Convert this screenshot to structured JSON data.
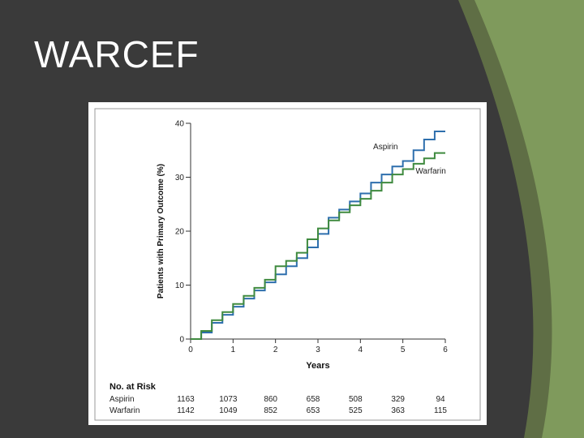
{
  "slide": {
    "title": "WARCEF",
    "colors": {
      "background": "#3a3a3a",
      "accent_dark": "#5f6e45",
      "accent_light": "#7f9a5c"
    }
  },
  "chart_data": {
    "type": "line",
    "title": "",
    "xlabel": "Years",
    "ylabel": "Patients with Primary Outcome (%)",
    "xlim": [
      0,
      6
    ],
    "ylim": [
      0,
      40
    ],
    "x_ticks": [
      "0",
      "1",
      "2",
      "3",
      "4",
      "5",
      "6"
    ],
    "y_ticks": [
      "0",
      "10",
      "20",
      "30",
      "40"
    ],
    "grid": false,
    "series": [
      {
        "name": "Aspirin",
        "color": "#2e6fad",
        "points": [
          [
            0,
            0
          ],
          [
            0.25,
            1.2
          ],
          [
            0.5,
            3
          ],
          [
            0.75,
            4.5
          ],
          [
            1,
            6
          ],
          [
            1.25,
            7.5
          ],
          [
            1.5,
            9
          ],
          [
            1.75,
            10.5
          ],
          [
            2,
            12
          ],
          [
            2.25,
            13.5
          ],
          [
            2.5,
            15
          ],
          [
            2.75,
            17
          ],
          [
            3,
            19.5
          ],
          [
            3.25,
            22.5
          ],
          [
            3.5,
            24
          ],
          [
            3.75,
            25.5
          ],
          [
            4,
            27
          ],
          [
            4.25,
            29
          ],
          [
            4.5,
            30.5
          ],
          [
            4.75,
            32
          ],
          [
            5,
            33
          ],
          [
            5.25,
            35
          ],
          [
            5.5,
            37
          ],
          [
            5.75,
            38.5
          ],
          [
            6,
            38.5
          ]
        ]
      },
      {
        "name": "Warfarin",
        "color": "#3f8a3f",
        "points": [
          [
            0,
            0
          ],
          [
            0.25,
            1.5
          ],
          [
            0.5,
            3.5
          ],
          [
            0.75,
            5
          ],
          [
            1,
            6.5
          ],
          [
            1.25,
            8
          ],
          [
            1.5,
            9.5
          ],
          [
            1.75,
            11
          ],
          [
            2,
            13.5
          ],
          [
            2.25,
            14.5
          ],
          [
            2.5,
            16
          ],
          [
            2.75,
            18.5
          ],
          [
            3,
            20.5
          ],
          [
            3.25,
            22
          ],
          [
            3.5,
            23.5
          ],
          [
            3.75,
            24.8
          ],
          [
            4,
            26
          ],
          [
            4.25,
            27.5
          ],
          [
            4.5,
            29
          ],
          [
            4.75,
            30.5
          ],
          [
            5,
            31.5
          ],
          [
            5.25,
            32.5
          ],
          [
            5.5,
            33.5
          ],
          [
            5.75,
            34.5
          ],
          [
            6,
            34.5
          ]
        ]
      }
    ],
    "risk_table": {
      "title": "No. at Risk",
      "rows": [
        {
          "label": "Aspirin",
          "values": [
            "1163",
            "1073",
            "860",
            "658",
            "508",
            "329",
            "94"
          ]
        },
        {
          "label": "Warfarin",
          "values": [
            "1142",
            "1049",
            "852",
            "653",
            "525",
            "363",
            "115"
          ]
        }
      ]
    }
  }
}
